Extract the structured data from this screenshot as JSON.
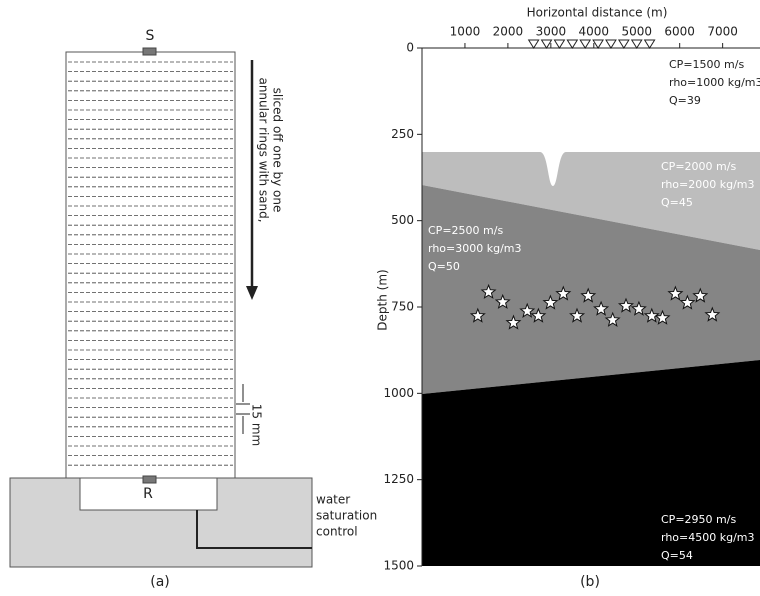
{
  "panel_a": {
    "top_sensor": "S",
    "bottom_sensor": "R",
    "arrow_text": [
      "annular rings with sand,",
      "sliced off one by one"
    ],
    "dimension": "15 mm",
    "water_label": [
      "water",
      "saturation",
      "control"
    ],
    "caption": "(a)"
  },
  "panel_b": {
    "x_label": "Horizontal distance (m)",
    "y_label": "Depth (m)",
    "xlim": [
      0,
      7870
    ],
    "ylim": [
      0,
      1500
    ],
    "xticks": [
      1000,
      2000,
      3000,
      4000,
      5000,
      6000,
      7000
    ],
    "yticks": [
      0,
      250,
      500,
      750,
      1000,
      1250,
      1500
    ],
    "layers": [
      [
        "CP=1500 m/s",
        "rho=1000 kg/m3",
        "Q=39"
      ],
      [
        "CP=2000 m/s",
        "rho=2000 kg/m3",
        "Q=45"
      ],
      [
        "CP=2500 m/s",
        "rho=3000 kg/m3",
        "Q=50"
      ],
      [
        "CP=2950 m/s",
        "rho=4500 kg/m3",
        "Q=54"
      ]
    ],
    "sources": {
      "x": [
        1300,
        1550,
        1880,
        2130,
        2450,
        2710,
        2990,
        3290,
        3610,
        3870,
        4170,
        4440,
        4750,
        5050,
        5350,
        5600,
        5900,
        6180,
        6480,
        6760
      ],
      "depth": [
        776,
        707,
        736,
        796,
        762,
        776,
        738,
        712,
        776,
        718,
        756,
        788,
        747,
        756,
        776,
        782,
        712,
        738,
        718,
        773
      ]
    },
    "receivers": [
      2600,
      2900,
      3200,
      3500,
      3800,
      4100,
      4400,
      4700,
      5000,
      5300
    ],
    "caption": "(b)"
  }
}
